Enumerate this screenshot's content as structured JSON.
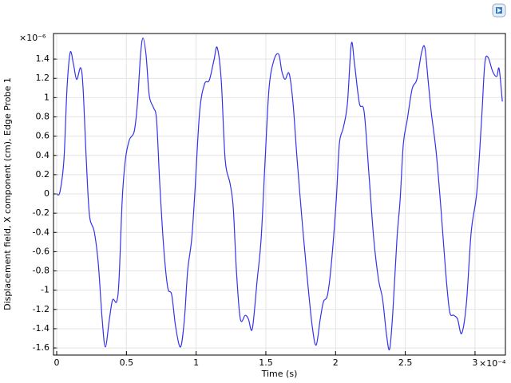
{
  "chart_data": {
    "type": "line",
    "x_label": "Time (s)",
    "y_label": "Displacement field, X component (cm), Edge Probe 1",
    "x_multiplier": "×10⁻⁴",
    "y_multiplier": "×10⁻⁶",
    "xlim": [
      -0.023,
      3.218
    ],
    "ylim": [
      -1.674,
      1.666
    ],
    "xticks": [
      0,
      0.5,
      1,
      1.5,
      2,
      2.5,
      3
    ],
    "yticks": [
      -1.6,
      -1.4,
      -1.2,
      -1,
      -0.8,
      -0.6,
      -0.4,
      -0.2,
      0,
      0.2,
      0.4,
      0.6,
      0.8,
      1,
      1.2,
      1.4
    ],
    "grid": true,
    "series": [
      {
        "color": "#3333ee",
        "x": [
          0,
          0.023,
          0.052,
          0.074,
          0.097,
          0.12,
          0.143,
          0.172,
          0.189,
          0.212,
          0.235,
          0.269,
          0.298,
          0.326,
          0.349,
          0.378,
          0.401,
          0.43,
          0.447,
          0.47,
          0.493,
          0.521,
          0.556,
          0.579,
          0.601,
          0.619,
          0.641,
          0.664,
          0.693,
          0.716,
          0.739,
          0.767,
          0.796,
          0.825,
          0.853,
          0.888,
          0.916,
          0.939,
          0.968,
          0.991,
          1.025,
          1.06,
          1.094,
          1.128,
          1.151,
          1.18,
          1.208,
          1.243,
          1.266,
          1.289,
          1.317,
          1.352,
          1.375,
          1.403,
          1.438,
          1.466,
          1.495,
          1.523,
          1.558,
          1.592,
          1.615,
          1.638,
          1.667,
          1.695,
          1.724,
          1.764,
          1.798,
          1.833,
          1.861,
          1.89,
          1.913,
          1.942,
          1.97,
          2.005,
          2.027,
          2.056,
          2.085,
          2.113,
          2.136,
          2.171,
          2.205,
          2.24,
          2.274,
          2.308,
          2.337,
          2.366,
          2.388,
          2.411,
          2.44,
          2.463,
          2.486,
          2.514,
          2.549,
          2.583,
          2.617,
          2.64,
          2.663,
          2.686,
          2.721,
          2.755,
          2.789,
          2.818,
          2.847,
          2.875,
          2.904,
          2.938,
          2.973,
          3.013,
          3.047,
          3.07,
          3.093,
          3.127,
          3.156,
          3.173,
          3.196
        ],
        "values": [
          0,
          0.02,
          0.36,
          1.1,
          1.47,
          1.35,
          1.19,
          1.31,
          1.1,
          0.36,
          -0.22,
          -0.39,
          -0.72,
          -1.3,
          -1.59,
          -1.3,
          -1.1,
          -1.12,
          -0.89,
          -0.06,
          0.36,
          0.56,
          0.65,
          0.94,
          1.44,
          1.62,
          1.44,
          1.02,
          0.9,
          0.77,
          0.11,
          -0.55,
          -0.97,
          -1.05,
          -1.38,
          -1.59,
          -1.3,
          -0.8,
          -0.47,
          0.02,
          0.85,
          1.14,
          1.18,
          1.39,
          1.52,
          1.18,
          0.36,
          0.11,
          -0.14,
          -0.8,
          -1.3,
          -1.26,
          -1.3,
          -1.4,
          -0.89,
          -0.47,
          0.36,
          1.1,
          1.39,
          1.45,
          1.27,
          1.19,
          1.25,
          0.94,
          0.36,
          -0.35,
          -0.89,
          -1.38,
          -1.57,
          -1.3,
          -1.12,
          -1.05,
          -0.72,
          -0.06,
          0.52,
          0.69,
          0.94,
          1.56,
          1.35,
          0.94,
          0.85,
          0.19,
          -0.47,
          -0.89,
          -1.09,
          -1.47,
          -1.61,
          -1.22,
          -0.47,
          -0.06,
          0.52,
          0.77,
          1.09,
          1.19,
          1.47,
          1.52,
          1.19,
          0.85,
          0.44,
          -0.14,
          -0.8,
          -1.22,
          -1.26,
          -1.3,
          -1.45,
          -1.14,
          -0.39,
          0.02,
          0.77,
          1.35,
          1.42,
          1.27,
          1.22,
          1.3,
          0.96
        ]
      }
    ]
  }
}
